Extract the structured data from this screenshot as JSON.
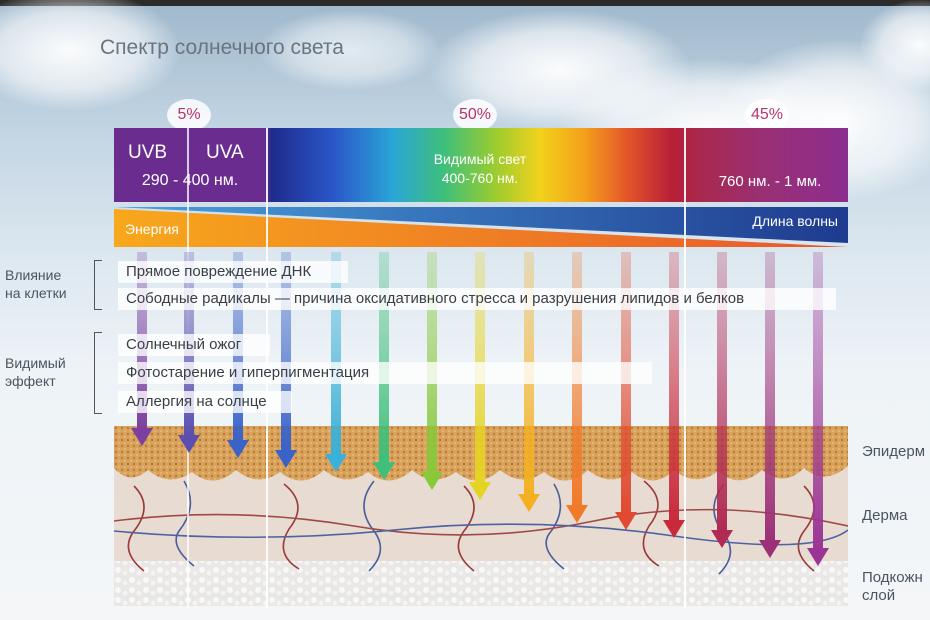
{
  "title": "Спектр солнечного света",
  "percents": [
    "5%",
    "50%",
    "45%"
  ],
  "spectrum": {
    "uvb": "UVB",
    "uva": "UVA",
    "uv_range": "290 - 400 нм.",
    "visible_label": "Видимый свет",
    "visible_range": "400-760 нм.",
    "ir_range": "760 нм. - 1 мм."
  },
  "axis": {
    "energy": "Энергия",
    "wavelength": "Длина волны"
  },
  "sections": {
    "cells_label": "Влияние\nна клетки",
    "visible_label": "Видимый\nэффект"
  },
  "effects": {
    "dna": "Прямое повреждение ДНК",
    "radicals": "Сободные радикалы — причина оксидативного стресса и разрушения липидов и белков",
    "sunburn": "Солнечный ожог",
    "photoaging": "Фотостарение и гиперпигментация",
    "allergy": "Аллергия на солнце"
  },
  "layers": {
    "epidermis": "Эпидерм",
    "dermis": "Дерма",
    "subcutaneous": "Подкожн\nслой"
  },
  "colors": {
    "uv": "#6a2d8f",
    "visible_start": "#2a57c9",
    "visible_end": "#b71f36",
    "infrared": "#8c2e8f",
    "energy": "#f2a21c",
    "wavelength": "#1f3b8f"
  }
}
